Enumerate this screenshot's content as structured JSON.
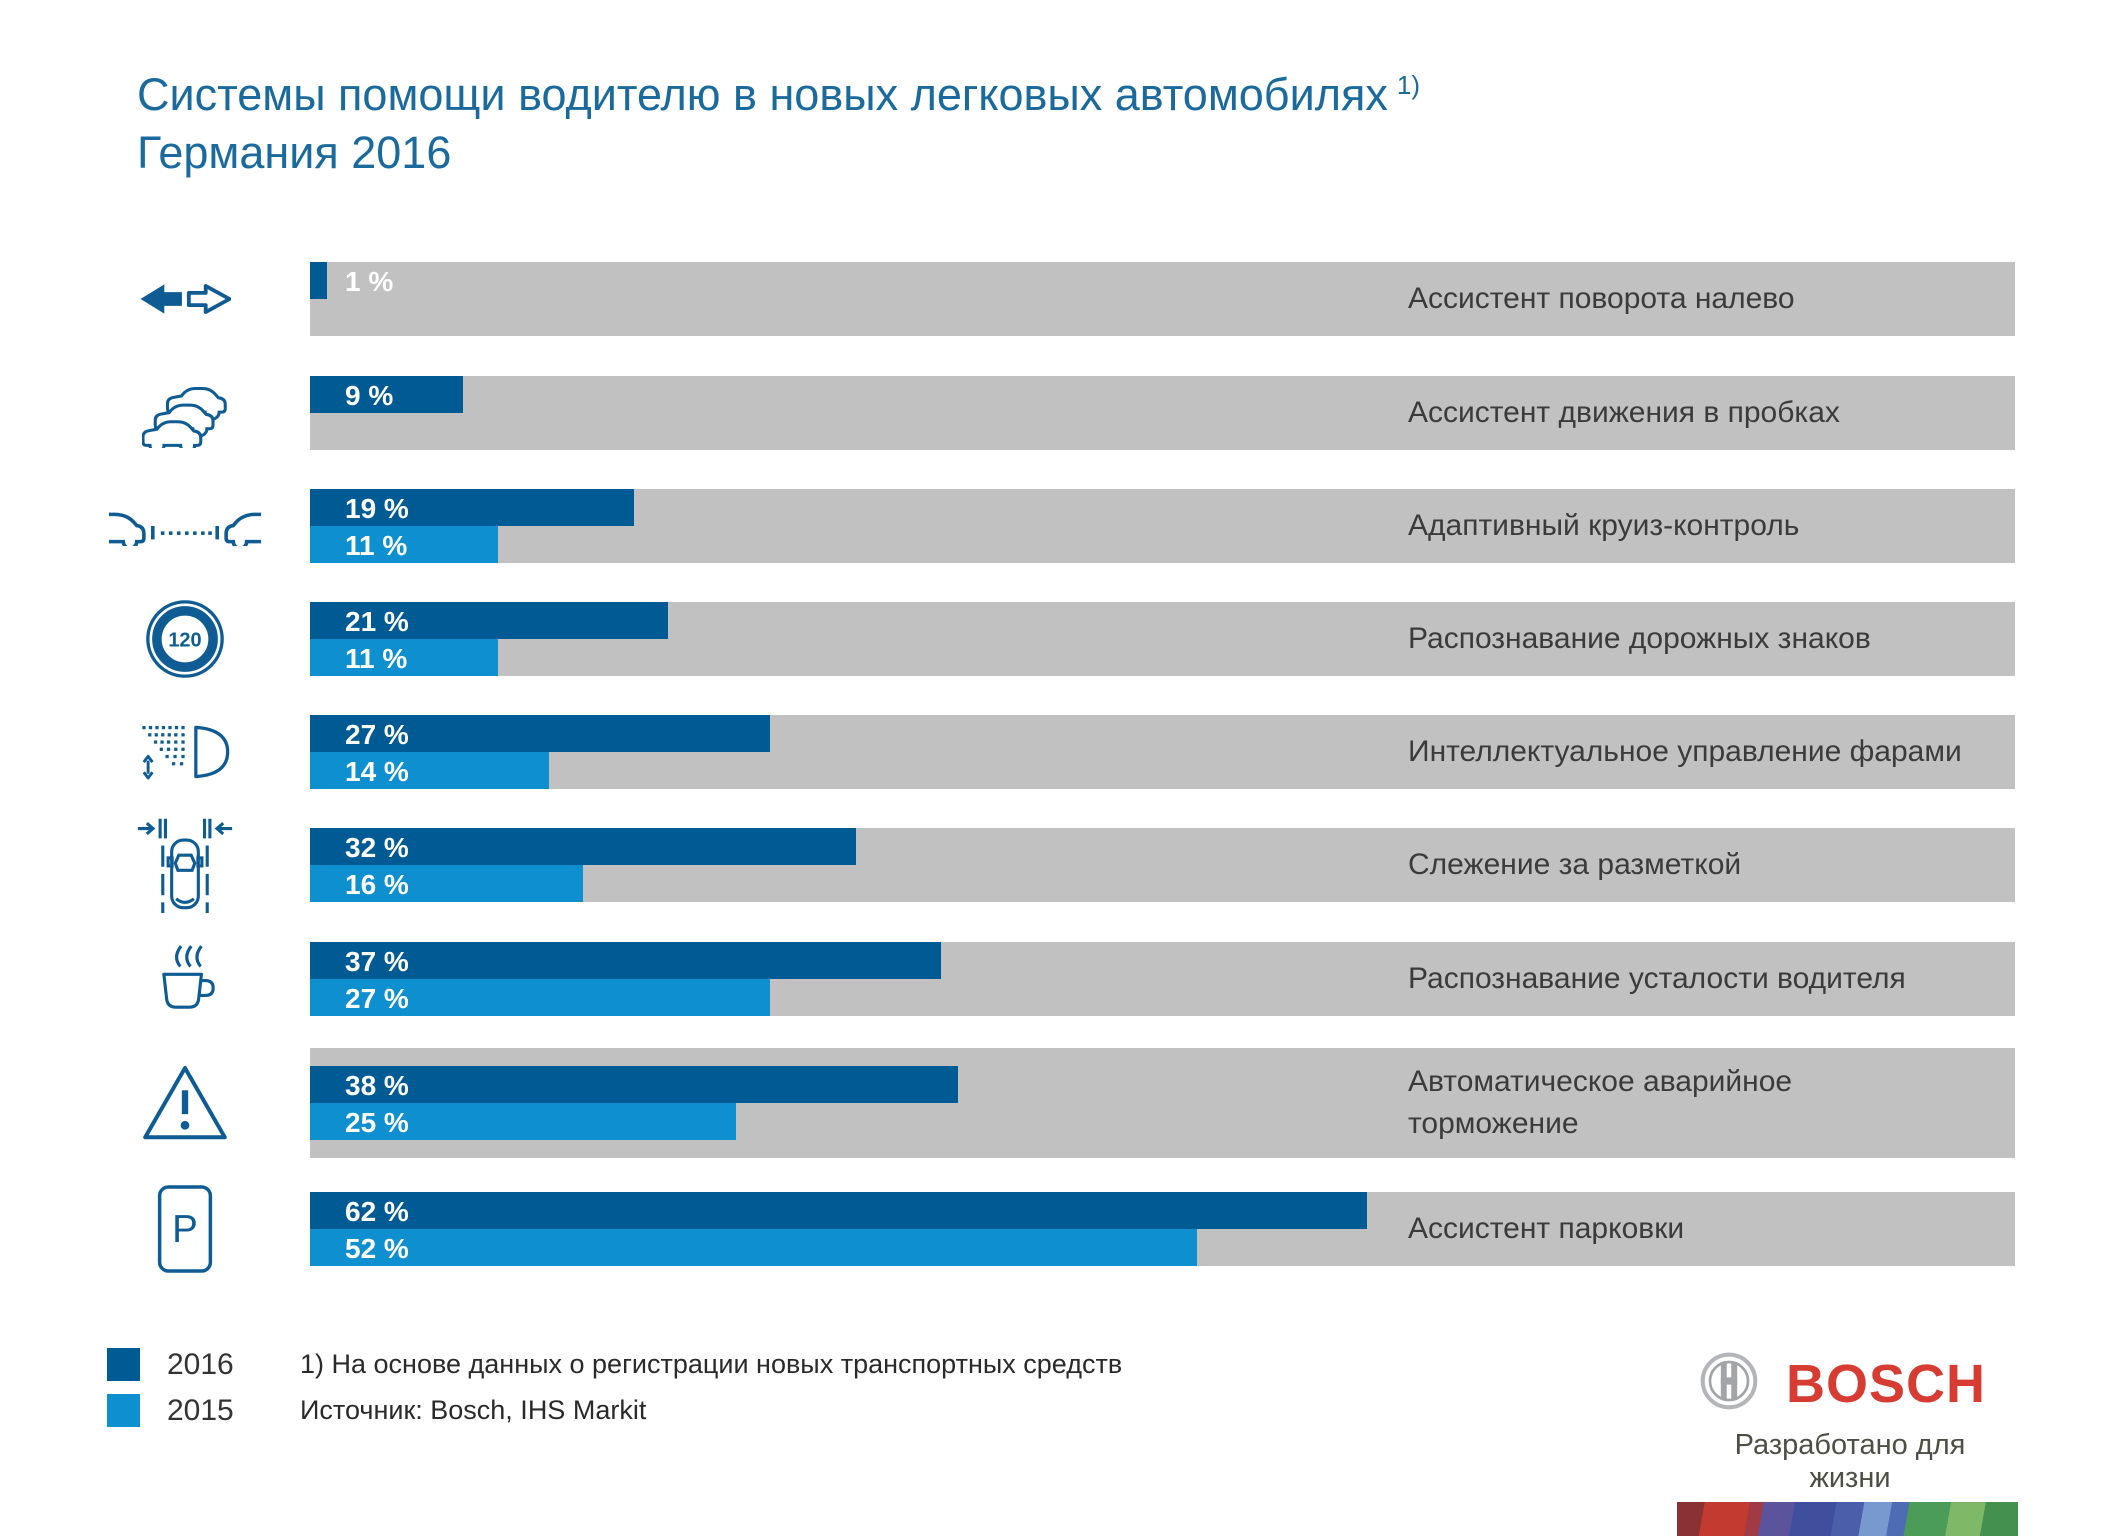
{
  "title": {
    "line1": "Системы помощи водителю в новых легковых автомобилях",
    "footnote_ref": "1)",
    "line2": "Германия 2016"
  },
  "chart_data": {
    "type": "bar",
    "orientation": "horizontal",
    "value_unit": "%",
    "value_suffix": " %",
    "axis_max": 100,
    "grid": false,
    "legend_position": "bottom-left",
    "series_names": [
      "2016",
      "2015"
    ],
    "colors": {
      "bar_2016": "#005b94",
      "bar_2015": "#0e90d0",
      "track": "#c1c1c1",
      "title_blue": "#1a6a9e",
      "icon_blue": "#0f5c94",
      "bosch_red": "#d63c31"
    },
    "rows": [
      {
        "label": "Ассистент поворота налево",
        "icon": "left-turn-arrows-icon",
        "v2016": 1,
        "v2015": null
      },
      {
        "label": "Ассистент движения в пробках",
        "icon": "traffic-jam-cars-icon",
        "v2016": 9,
        "v2015": null
      },
      {
        "label": "Адаптивный круиз-контроль",
        "icon": "following-distance-icon",
        "v2016": 19,
        "v2015": 11
      },
      {
        "label": "Распознавание дорожных знаков",
        "icon": "speed-limit-120-icon",
        "v2016": 21,
        "v2015": 11
      },
      {
        "label": "Интеллектуальное управление фарами",
        "icon": "headlight-beam-icon",
        "v2016": 27,
        "v2015": 14
      },
      {
        "label": "Слежение за разметкой",
        "icon": "lane-keeping-icon",
        "v2016": 32,
        "v2015": 16
      },
      {
        "label": "Распознавание усталости водителя",
        "icon": "coffee-cup-icon",
        "v2016": 37,
        "v2015": 27
      },
      {
        "label": "Автоматическое аварийное\nторможение",
        "icon": "warning-triangle-icon",
        "v2016": 38,
        "v2015": 25
      },
      {
        "label": "Ассистент парковки",
        "icon": "parking-sign-icon",
        "v2016": 62,
        "v2015": 52
      }
    ]
  },
  "legend": [
    {
      "label": "2016",
      "color": "#005b94"
    },
    {
      "label": "2015",
      "color": "#0e90d0"
    }
  ],
  "notes": {
    "footnote": "1) На основе данных о регистрации новых транспортных средств",
    "source": "Источник: Bosch, IHS Markit"
  },
  "branding": {
    "wordmark": "BOSCH",
    "tagline": "Разработано для жизни"
  },
  "sign_icon_text": {
    "speed_limit": "120",
    "parking": "P"
  }
}
